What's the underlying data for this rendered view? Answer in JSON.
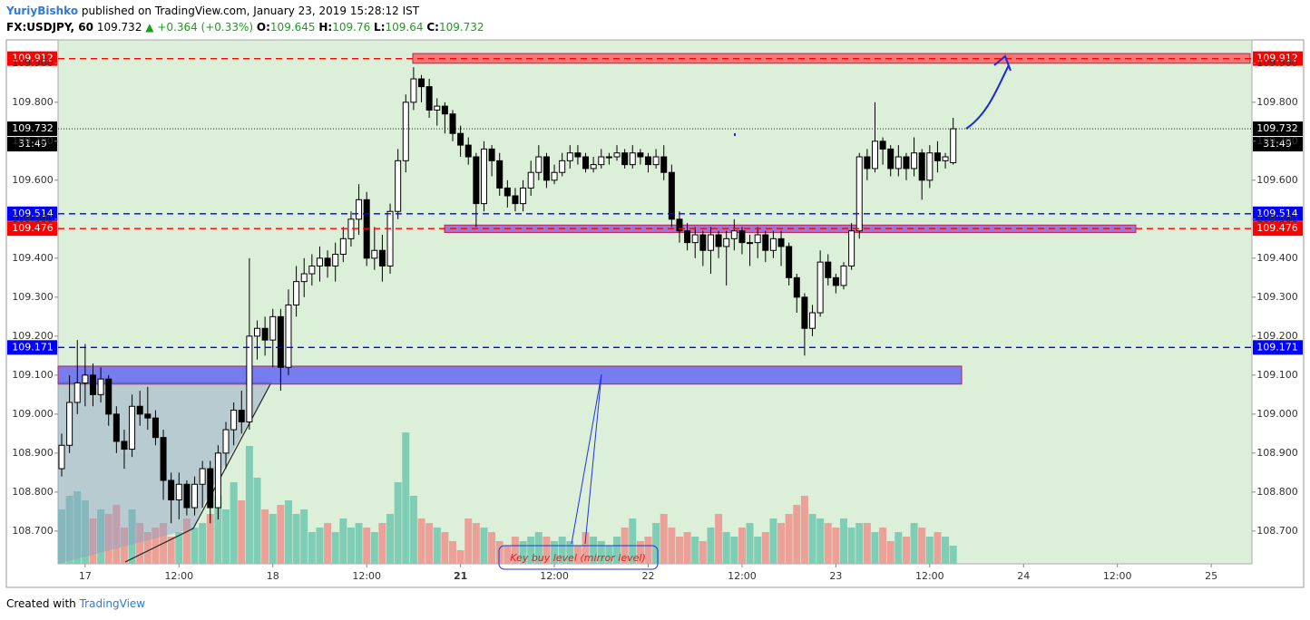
{
  "header": {
    "author": "YuriyBishko",
    "published": "published on TradingView.com, January 23, 2019 15:28:12 IST",
    "symbol": "FX:USDJPY, 60",
    "last": 109.732,
    "change": "▲ +0.364 (+0.33%)",
    "o_label": "O:",
    "o": 109.645,
    "h_label": "H:",
    "h": 109.76,
    "l_label": "L:",
    "l": 109.64,
    "c_label": "C:",
    "c": 109.732
  },
  "footer": {
    "created": "Created with",
    "brand": "TradingView"
  },
  "chart_data": {
    "type": "candlestick",
    "ylim": [
      108.616,
      109.96
    ],
    "yticks": [
      {
        "value": 108.7,
        "label": "108.700"
      },
      {
        "value": 108.8,
        "label": "108.800"
      },
      {
        "value": 108.9,
        "label": "108.900"
      },
      {
        "value": 109.0,
        "label": "109.000"
      },
      {
        "value": 109.1,
        "label": "109.100"
      },
      {
        "value": 109.2,
        "label": "109.200"
      },
      {
        "value": 109.3,
        "label": "109.300"
      },
      {
        "value": 109.4,
        "label": "109.400"
      },
      {
        "value": 109.5,
        "label": "109.500"
      },
      {
        "value": 109.6,
        "label": "109.600"
      },
      {
        "value": 109.7,
        "label": "109.700"
      },
      {
        "value": 109.8,
        "label": "109.800"
      },
      {
        "value": 109.9,
        "label": "109.900"
      }
    ],
    "xlim": [
      0,
      152
    ],
    "xticks": [
      {
        "value": 3,
        "label": "17"
      },
      {
        "value": 15,
        "label": "12:00"
      },
      {
        "value": 27,
        "label": "18"
      },
      {
        "value": 39,
        "label": "12:00"
      },
      {
        "value": 51,
        "label": "21"
      },
      {
        "value": 63,
        "label": "12:00"
      },
      {
        "value": 75,
        "label": "22"
      },
      {
        "value": 87,
        "label": "12:00"
      },
      {
        "value": 99,
        "label": "23"
      },
      {
        "value": 111,
        "label": "12:00"
      },
      {
        "value": 123,
        "label": "24"
      },
      {
        "value": 135,
        "label": "12:00"
      },
      {
        "value": 147,
        "label": "25"
      }
    ],
    "up_color": "#ffffff",
    "down_color": "#000000",
    "volume_up_color": "#7fcdb5",
    "volume_down_color": "#eba197",
    "candles": [
      [
        108.86,
        108.95,
        108.84,
        108.92,
        60
      ],
      [
        108.92,
        109.1,
        108.9,
        109.03,
        75
      ],
      [
        109.03,
        109.19,
        109.0,
        109.08,
        80
      ],
      [
        109.08,
        109.18,
        109.02,
        109.1,
        70
      ],
      [
        109.1,
        109.13,
        109.02,
        109.05,
        50
      ],
      [
        109.05,
        109.12,
        109.03,
        109.09,
        60
      ],
      [
        109.09,
        109.1,
        108.97,
        109.0,
        55
      ],
      [
        109.0,
        109.02,
        108.9,
        108.93,
        65
      ],
      [
        108.93,
        108.96,
        108.86,
        108.91,
        40
      ],
      [
        108.91,
        109.05,
        108.89,
        109.02,
        60
      ],
      [
        109.02,
        109.06,
        108.97,
        109.0,
        45
      ],
      [
        109.0,
        109.07,
        108.96,
        108.99,
        35
      ],
      [
        108.99,
        109.01,
        108.92,
        108.94,
        40
      ],
      [
        108.94,
        108.96,
        108.78,
        108.83,
        45
      ],
      [
        108.83,
        108.85,
        108.72,
        108.78,
        30
      ],
      [
        108.78,
        108.85,
        108.73,
        108.82,
        35
      ],
      [
        108.82,
        108.83,
        108.74,
        108.76,
        50
      ],
      [
        108.76,
        108.84,
        108.74,
        108.82,
        40
      ],
      [
        108.82,
        108.88,
        108.76,
        108.86,
        45
      ],
      [
        108.86,
        108.88,
        108.72,
        108.76,
        55
      ],
      [
        108.76,
        108.92,
        108.73,
        108.9,
        75
      ],
      [
        108.9,
        108.98,
        108.86,
        108.96,
        60
      ],
      [
        108.96,
        109.03,
        108.92,
        109.01,
        90
      ],
      [
        109.01,
        109.06,
        108.95,
        108.98,
        70
      ],
      [
        108.98,
        109.4,
        108.96,
        109.2,
        130
      ],
      [
        109.2,
        109.24,
        109.14,
        109.22,
        95
      ],
      [
        109.22,
        109.25,
        109.15,
        109.19,
        60
      ],
      [
        109.19,
        109.27,
        109.12,
        109.25,
        55
      ],
      [
        109.25,
        109.27,
        109.06,
        109.12,
        65
      ],
      [
        109.12,
        109.32,
        109.1,
        109.28,
        70
      ],
      [
        109.28,
        109.38,
        109.25,
        109.34,
        55
      ],
      [
        109.34,
        109.4,
        109.3,
        109.36,
        60
      ],
      [
        109.36,
        109.41,
        109.33,
        109.38,
        35
      ],
      [
        109.38,
        109.43,
        109.34,
        109.4,
        40
      ],
      [
        109.4,
        109.42,
        109.35,
        109.38,
        45
      ],
      [
        109.38,
        109.44,
        109.34,
        109.41,
        35
      ],
      [
        109.41,
        109.48,
        109.39,
        109.45,
        50
      ],
      [
        109.45,
        109.52,
        109.43,
        109.5,
        40
      ],
      [
        109.5,
        109.59,
        109.46,
        109.55,
        45
      ],
      [
        109.55,
        109.57,
        109.38,
        109.4,
        40
      ],
      [
        109.4,
        109.48,
        109.37,
        109.42,
        35
      ],
      [
        109.42,
        109.46,
        109.34,
        109.38,
        45
      ],
      [
        109.38,
        109.54,
        109.36,
        109.52,
        55
      ],
      [
        109.52,
        109.68,
        109.5,
        109.65,
        90
      ],
      [
        109.65,
        109.82,
        109.62,
        109.8,
        145
      ],
      [
        109.8,
        109.89,
        109.78,
        109.86,
        75
      ],
      [
        109.86,
        109.87,
        109.8,
        109.84,
        50
      ],
      [
        109.84,
        109.86,
        109.76,
        109.78,
        45
      ],
      [
        109.78,
        109.81,
        109.74,
        109.79,
        40
      ],
      [
        109.79,
        109.8,
        109.72,
        109.77,
        35
      ],
      [
        109.77,
        109.78,
        109.7,
        109.72,
        25
      ],
      [
        109.72,
        109.74,
        109.66,
        109.69,
        15
      ],
      [
        109.69,
        109.71,
        109.64,
        109.66,
        50
      ],
      [
        109.66,
        109.67,
        109.48,
        109.54,
        45
      ],
      [
        109.54,
        109.7,
        109.52,
        109.68,
        40
      ],
      [
        109.68,
        109.69,
        109.61,
        109.65,
        35
      ],
      [
        109.65,
        109.67,
        109.56,
        109.58,
        25
      ],
      [
        109.58,
        109.6,
        109.53,
        109.56,
        20
      ],
      [
        109.56,
        109.58,
        109.52,
        109.54,
        30
      ],
      [
        109.54,
        109.6,
        109.52,
        109.58,
        25
      ],
      [
        109.58,
        109.65,
        109.56,
        109.62,
        30
      ],
      [
        109.62,
        109.69,
        109.6,
        109.66,
        35
      ],
      [
        109.66,
        109.67,
        109.58,
        109.6,
        30
      ],
      [
        109.6,
        109.64,
        109.59,
        109.62,
        25
      ],
      [
        109.62,
        109.67,
        109.61,
        109.65,
        30
      ],
      [
        109.65,
        109.69,
        109.63,
        109.67,
        25
      ],
      [
        109.67,
        109.69,
        109.64,
        109.66,
        20
      ],
      [
        109.66,
        109.67,
        109.62,
        109.63,
        35
      ],
      [
        109.63,
        109.66,
        109.62,
        109.64,
        30
      ],
      [
        109.64,
        109.68,
        109.63,
        109.66,
        25
      ],
      [
        109.66,
        109.67,
        109.64,
        109.66,
        20
      ],
      [
        109.66,
        109.69,
        109.65,
        109.67,
        30
      ],
      [
        109.67,
        109.68,
        109.63,
        109.64,
        40
      ],
      [
        109.64,
        109.69,
        109.63,
        109.67,
        50
      ],
      [
        109.67,
        109.68,
        109.64,
        109.66,
        25
      ],
      [
        109.66,
        109.67,
        109.62,
        109.64,
        30
      ],
      [
        109.64,
        109.68,
        109.63,
        109.66,
        45
      ],
      [
        109.66,
        109.69,
        109.6,
        109.62,
        55
      ],
      [
        109.62,
        109.64,
        109.48,
        109.5,
        40
      ],
      [
        109.5,
        109.52,
        109.44,
        109.47,
        30
      ],
      [
        109.47,
        109.49,
        109.42,
        109.44,
        35
      ],
      [
        109.44,
        109.48,
        109.4,
        109.46,
        30
      ],
      [
        109.46,
        109.47,
        109.38,
        109.42,
        25
      ],
      [
        109.42,
        109.48,
        109.36,
        109.46,
        40
      ],
      [
        109.46,
        109.47,
        109.4,
        109.43,
        55
      ],
      [
        109.43,
        109.47,
        109.33,
        109.45,
        35
      ],
      [
        109.45,
        109.5,
        109.42,
        109.47,
        30
      ],
      [
        109.47,
        109.48,
        109.41,
        109.44,
        40
      ],
      [
        109.44,
        109.46,
        109.38,
        109.44,
        45
      ],
      [
        109.44,
        109.48,
        109.4,
        109.46,
        30
      ],
      [
        109.46,
        109.47,
        109.39,
        109.42,
        35
      ],
      [
        109.42,
        109.47,
        109.4,
        109.45,
        50
      ],
      [
        109.45,
        109.47,
        109.38,
        109.43,
        45
      ],
      [
        109.43,
        109.44,
        109.33,
        109.35,
        55
      ],
      [
        109.35,
        109.36,
        109.26,
        109.3,
        65
      ],
      [
        109.3,
        109.31,
        109.15,
        109.22,
        75
      ],
      [
        109.22,
        109.28,
        109.2,
        109.26,
        55
      ],
      [
        109.26,
        109.42,
        109.25,
        109.39,
        50
      ],
      [
        109.39,
        109.41,
        109.33,
        109.35,
        45
      ],
      [
        109.35,
        109.36,
        109.31,
        109.33,
        40
      ],
      [
        109.33,
        109.39,
        109.32,
        109.38,
        50
      ],
      [
        109.38,
        109.49,
        109.37,
        109.47,
        40
      ],
      [
        109.47,
        109.67,
        109.45,
        109.66,
        45
      ],
      [
        109.66,
        109.68,
        109.6,
        109.63,
        45
      ],
      [
        109.63,
        109.8,
        109.62,
        109.7,
        35
      ],
      [
        109.7,
        109.71,
        109.64,
        109.68,
        40
      ],
      [
        109.68,
        109.69,
        109.61,
        109.63,
        25
      ],
      [
        109.63,
        109.69,
        109.61,
        109.66,
        35
      ],
      [
        109.66,
        109.67,
        109.6,
        109.63,
        30
      ],
      [
        109.63,
        109.71,
        109.61,
        109.67,
        45
      ],
      [
        109.67,
        109.68,
        109.55,
        109.6,
        40
      ],
      [
        109.6,
        109.69,
        109.58,
        109.67,
        30
      ],
      [
        109.67,
        109.7,
        109.62,
        109.65,
        35
      ],
      [
        109.65,
        109.67,
        109.63,
        109.66,
        30
      ],
      [
        109.645,
        109.76,
        109.64,
        109.732,
        20
      ]
    ],
    "levels": [
      {
        "price": 109.912,
        "color": "#ff0000",
        "style": "dashed"
      },
      {
        "price": 109.732,
        "color": "#000000",
        "style": "dotted"
      },
      {
        "price": 109.514,
        "color": "#0000ff",
        "style": "dashed"
      },
      {
        "price": 109.476,
        "color": "#ff0000",
        "style": "dashed"
      },
      {
        "price": 109.171,
        "color": "#0000ff",
        "style": "dashed"
      }
    ],
    "countdown": "31:49",
    "zones": [
      {
        "range": [
          109.9,
          109.925
        ],
        "color": "#f26b6b"
      },
      {
        "range": [
          109.466,
          109.485
        ],
        "color": "#8a6ee0"
      },
      {
        "range": [
          109.077,
          109.123
        ],
        "color": "#6b6ff0"
      }
    ],
    "annotation": "Key buy level (mirror level)"
  }
}
